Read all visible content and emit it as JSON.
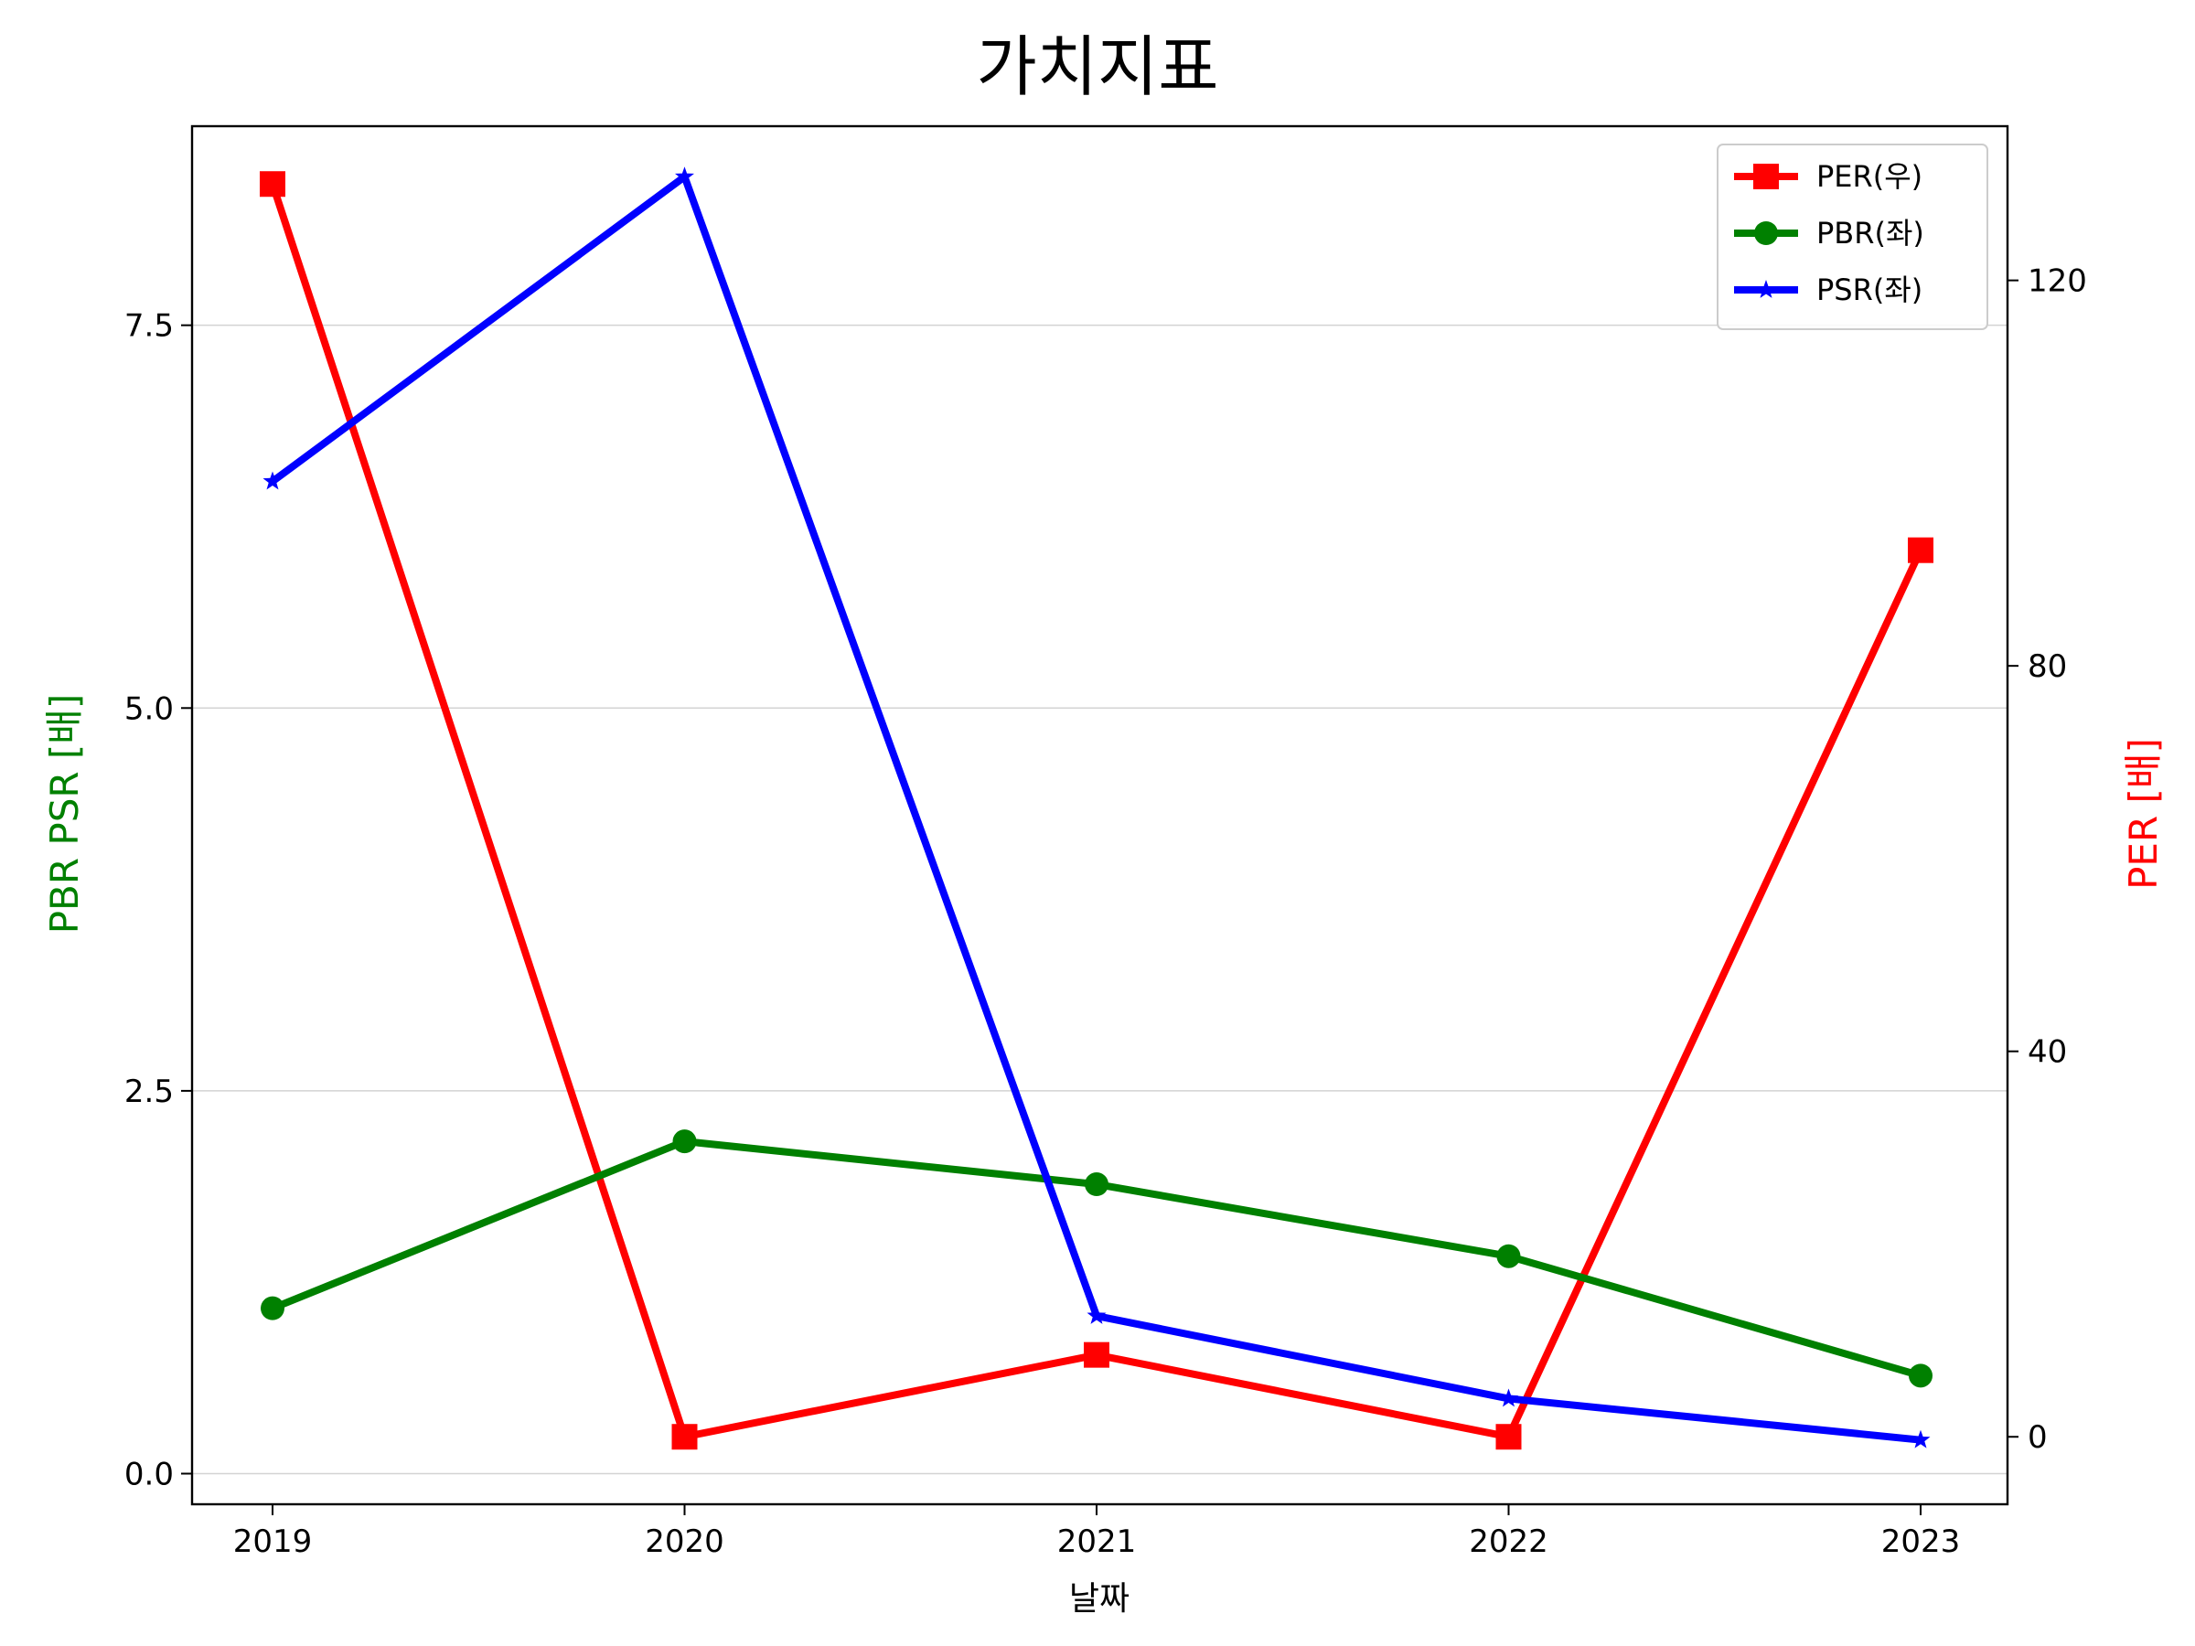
{
  "chart_data": {
    "type": "line",
    "title": "가치지표",
    "xlabel": "날짜",
    "ylabel_left": "PBR PSR [배]",
    "ylabel_right": "PER [배]",
    "categories": [
      "2019",
      "2020",
      "2021",
      "2022",
      "2023"
    ],
    "y_left": {
      "lim": [
        -0.2,
        8.8
      ],
      "ticks": [
        0.0,
        2.5,
        5.0,
        7.5
      ],
      "tick_labels": [
        "0.0",
        "2.5",
        "5.0",
        "7.5"
      ]
    },
    "y_right": {
      "lim": [
        -7,
        136
      ],
      "ticks": [
        0,
        40,
        80,
        120
      ],
      "tick_labels": [
        "0",
        "40",
        "80",
        "120"
      ]
    },
    "grid": "horizontal-left",
    "legend_position": "top-right",
    "series": [
      {
        "name": "PER(우)",
        "axis": "right",
        "marker": "square",
        "color": "#ff0000",
        "values": [
          130,
          0,
          8.5,
          0,
          92
        ]
      },
      {
        "name": "PBR(좌)",
        "axis": "left",
        "marker": "circle",
        "color": "#008000",
        "values": [
          1.08,
          2.17,
          1.89,
          1.42,
          0.64
        ]
      },
      {
        "name": "PSR(좌)",
        "axis": "left",
        "marker": "star",
        "color": "#0000ff",
        "values": [
          6.48,
          8.47,
          1.03,
          0.49,
          0.22
        ]
      }
    ],
    "ylabel_left_color": "#008000",
    "ylabel_right_color": "#ff0000"
  }
}
